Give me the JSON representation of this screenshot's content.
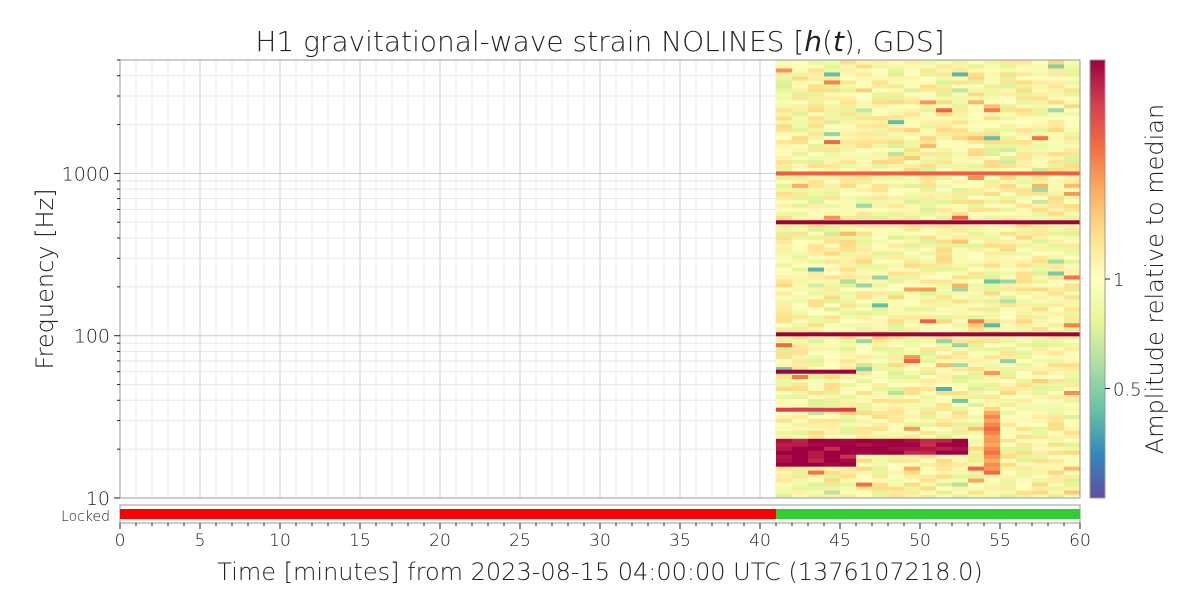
{
  "chart_data": {
    "type": "heatmap",
    "title": "H1 gravitational-wave strain NOLINES [h(t), GDS]",
    "title_parts": [
      "H1 gravitational-wave strain NOLINES [",
      "h",
      "(",
      "t",
      "), GDS]"
    ],
    "xlabel": "Time [minutes] from 2023-08-15 04:00:00 UTC (1376107218.0)",
    "ylabel": "Frequency [Hz]",
    "xlim": [
      0,
      60
    ],
    "ylim": [
      10,
      5000
    ],
    "yscale": "log",
    "grid": true,
    "x_ticks": [
      0,
      5,
      10,
      15,
      20,
      25,
      30,
      35,
      40,
      45,
      50,
      55,
      60
    ],
    "y_ticks": [
      10,
      100,
      1000
    ],
    "x_tick_labels": [
      "0",
      "5",
      "10",
      "15",
      "20",
      "25",
      "30",
      "35",
      "40",
      "45",
      "50",
      "55",
      "60"
    ],
    "y_tick_labels": [
      "10",
      "100",
      "1000"
    ],
    "data_start_minute": 41,
    "median_level": 1.0,
    "strong_lines": [
      {
        "frequency": 1000,
        "amplitude": 2.5,
        "t_start": 41,
        "t_end": 60
      },
      {
        "frequency": 500,
        "amplitude": 4.0,
        "t_start": 41,
        "t_end": 60
      },
      {
        "frequency": 102,
        "amplitude": 4.0,
        "t_start": 41,
        "t_end": 60
      },
      {
        "frequency": 60,
        "amplitude": 4.0,
        "t_start": 41,
        "t_end": 46
      },
      {
        "frequency": 35,
        "amplitude": 3.0,
        "t_start": 41,
        "t_end": 46
      }
    ],
    "low_frequency_excess": [
      {
        "f_min": 15.5,
        "f_max": 19,
        "amplitude": 4.0,
        "t_start": 41,
        "t_end": 46
      },
      {
        "f_min": 19,
        "f_max": 23,
        "amplitude": 4.0,
        "t_start": 41,
        "t_end": 53
      },
      {
        "f_min": 14,
        "f_max": 35,
        "amplitude": 2.0,
        "t_start": 54.2,
        "t_end": 55.2
      }
    ],
    "colorbar": {
      "label": "Amplitude relative to median",
      "scale": "log",
      "range": [
        0.25,
        4
      ],
      "ticks": [
        0.5,
        1
      ],
      "tick_labels": [
        "0.5",
        "1"
      ],
      "colormap": "Spectral_r"
    },
    "state_segments": {
      "label": "Locked",
      "segments": [
        {
          "start": 0,
          "end": 41,
          "state": "inactive",
          "color": "#ff0000"
        },
        {
          "start": 41,
          "end": 60,
          "state": "active",
          "color": "#33cc33"
        }
      ]
    }
  }
}
